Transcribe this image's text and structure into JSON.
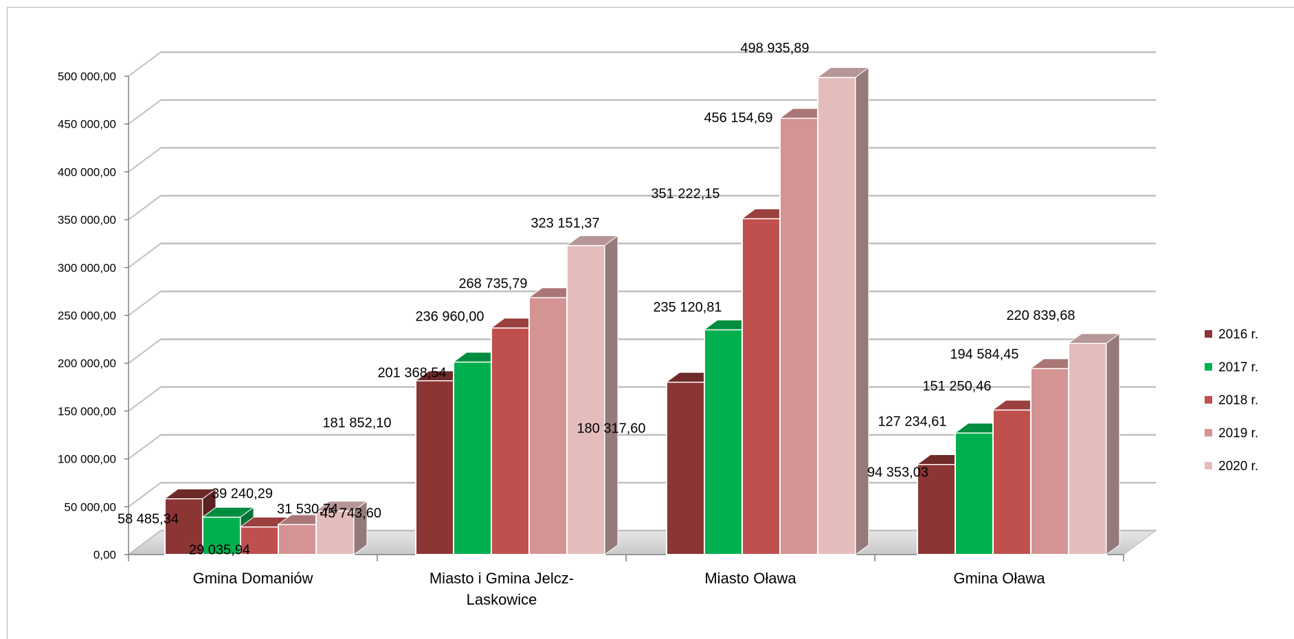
{
  "chart_data": {
    "type": "bar",
    "title": "",
    "xlabel": "",
    "ylabel": "",
    "ylim": [
      0,
      500000
    ],
    "y_ticks": [
      "0,00",
      "50 000,00",
      "100 000,00",
      "150 000,00",
      "200 000,00",
      "250 000,00",
      "300 000,00",
      "350 000,00",
      "400 000,00",
      "450 000,00",
      "500 000,00"
    ],
    "categories": [
      "Gmina Domaniów",
      "Miasto i Gmina Jelcz-\nLaskowice",
      "Miasto Oława",
      "Gmina Oława"
    ],
    "series": [
      {
        "name": "2016 r.",
        "color": "#8b3535",
        "values": [
          58485.34,
          181852.1,
          180317.6,
          94353.03
        ],
        "labels": [
          "58 485,34",
          "181 852,10",
          "180 317,60",
          "94 353,03"
        ]
      },
      {
        "name": "2017 r.",
        "color": "#00b04f",
        "values": [
          39240.29,
          201368.54,
          235120.81,
          127234.61
        ],
        "labels": [
          "39 240,29",
          "201 368,54",
          "235 120,81",
          "127 234,61"
        ]
      },
      {
        "name": "2018 r.",
        "color": "#c0504d",
        "values": [
          29035.94,
          236960.0,
          351222.15,
          151250.46
        ],
        "labels": [
          "29 035,94",
          "236 960,00",
          "351 222,15",
          "151 250,46"
        ]
      },
      {
        "name": "2019 r.",
        "color": "#d49493",
        "values": [
          31530.74,
          268735.79,
          456154.69,
          194584.45
        ],
        "labels": [
          "31 530,74",
          "268 735,79",
          "456 154,69",
          "194 584,45"
        ]
      },
      {
        "name": "2020 r.",
        "color": "#e4bcbc",
        "values": [
          45743.6,
          323151.37,
          498935.89,
          220839.68
        ],
        "labels": [
          "45 743,60",
          "323 151,37",
          "498 935,89",
          "220 839,68"
        ]
      }
    ],
    "grid": true,
    "legend": "right",
    "style": "3d-column"
  }
}
